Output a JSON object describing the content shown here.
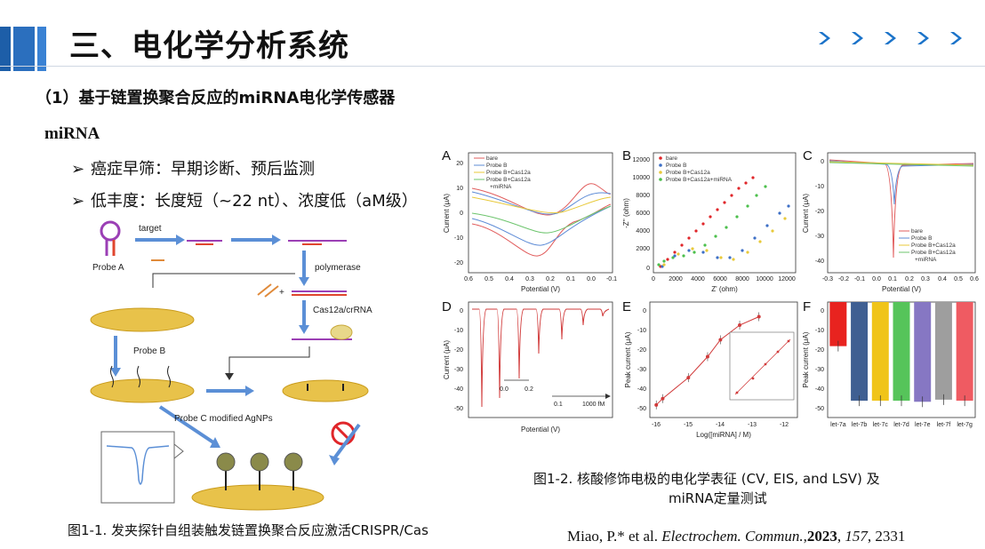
{
  "header": {
    "title": "三、电化学分析系统",
    "accent_color": "#1d5ea8",
    "chevron_color": "#1b73c9"
  },
  "subtitle": "（1）基于链置换聚合反应的miRNA电化学传感器",
  "section_label": "miRNA",
  "bullets": [
    {
      "marker": "➢",
      "text": "癌症早筛：早期诊断、预后监测"
    },
    {
      "marker": "➢",
      "text": "低丰度：长度短（~22 nt）、浓度低（aM级）"
    }
  ],
  "schematic": {
    "target": "target",
    "probe_a": "Probe A",
    "polymerase": "polymerase",
    "cas": "Cas12a/crRNA",
    "probe_b": "Probe B",
    "probe_c": "Probe C modified AgNPs",
    "plus": "+"
  },
  "figure1_caption": "图1-1. 发夹探针自组装触发链置换聚合反应激活CRISPR/Cas",
  "figure2_caption_line1": "图1-2. 核酸修饰电极的电化学表征 (CV, EIS, and LSV) 及",
  "figure2_caption_line2": "miRNA定量测试",
  "reference": {
    "authors": "Miao, P.* et al. ",
    "journal": "Electrochem. Commun.",
    "sep": ",",
    "year": "2023",
    "sep2": ", ",
    "volume": "157",
    "pages": ", 2331"
  },
  "panels": {
    "A": {
      "label": "A",
      "xlabel": "Potential (V)",
      "ylabel": "Current (μA)",
      "xticks": [
        "0.6",
        "0.5",
        "0.4",
        "0.3",
        "0.2",
        "0.1",
        "0.0",
        "-0.1"
      ],
      "yticks": [
        "20",
        "10",
        "0",
        "-10",
        "-20"
      ],
      "legend": [
        "bare",
        "Probe B",
        "Probe B+Cas12a",
        "Probe B+Cas12a",
        "+miRNA"
      ]
    },
    "B": {
      "label": "B",
      "xlabel": "Z' (ohm)",
      "ylabel": "-Z'' (ohm)",
      "xticks": [
        "0",
        "2000",
        "4000",
        "6000",
        "8000",
        "10000",
        "12000"
      ],
      "yticks": [
        "12000",
        "10000",
        "8000",
        "6000",
        "4000",
        "2000",
        "0"
      ],
      "legend": [
        "bare",
        "Probe B",
        "Probe B+Cas12a",
        "Probe B+Cas12a+miRNA"
      ]
    },
    "C": {
      "label": "C",
      "xlabel": "Potential (V)",
      "ylabel": "Current (μA)",
      "xticks": [
        "-0.3",
        "-0.2",
        "-0.1",
        "0.0",
        "0.1",
        "0.2",
        "0.3",
        "0.4",
        "0.5",
        "0.6"
      ],
      "yticks": [
        "0",
        "-10",
        "-20",
        "-30",
        "-40"
      ],
      "legend": [
        "bare",
        "Probe B",
        "Probe B+Cas12a",
        "Probe B+Cas12a",
        "+miRNA"
      ]
    },
    "D": {
      "label": "D",
      "xlabel": "Potential (V)",
      "ylabel": "Current (μA)",
      "yticks": [
        "0",
        "-10",
        "-20",
        "-30",
        "-40",
        "-50"
      ],
      "scale": [
        "0.0",
        "0.2"
      ],
      "conc": [
        "0.1",
        "1000 fM"
      ]
    },
    "E": {
      "label": "E",
      "xlabel": "Log([miRNA] / M)",
      "ylabel": "Peak current (μA)",
      "xticks": [
        "-16",
        "-15",
        "-14",
        "-13",
        "-12"
      ],
      "yticks": [
        "0",
        "-10",
        "-20",
        "-30",
        "-40",
        "-50"
      ]
    },
    "F": {
      "label": "F",
      "ylabel": "Peak current (μA)",
      "yticks": [
        "0",
        "-10",
        "-20",
        "-30",
        "-40",
        "-50"
      ],
      "categories": [
        "let-7a",
        "let-7b",
        "let-7c",
        "let-7d",
        "let-7e",
        "let-7f",
        "let-7g"
      ]
    }
  },
  "chart_data": [
    {
      "type": "line",
      "title": "E",
      "xlabel": "Log([miRNA] / M)",
      "ylabel": "Peak current (μA)",
      "x": [
        -16,
        -15.8,
        -15,
        -14.4,
        -14,
        -13.4,
        -12.8
      ],
      "values": [
        -44,
        -41,
        -31,
        -21,
        -13,
        -6,
        -2
      ],
      "xlim": [
        -16.2,
        -11.6
      ],
      "ylim": [
        -50,
        5
      ]
    },
    {
      "type": "bar",
      "title": "F",
      "ylabel": "Peak current (μA)",
      "categories": [
        "let-7a",
        "let-7b",
        "let-7c",
        "let-7d",
        "let-7e",
        "let-7f",
        "let-7g"
      ],
      "values": [
        -21,
        -47,
        -47,
        -47,
        -47.5,
        -46.5,
        -47
      ],
      "colors": [
        "#e8231f",
        "#3f5f92",
        "#f0c419",
        "#56c45a",
        "#8677c3",
        "#9e9e9e",
        "#ef5b62"
      ],
      "ylim": [
        -55,
        0
      ]
    }
  ]
}
